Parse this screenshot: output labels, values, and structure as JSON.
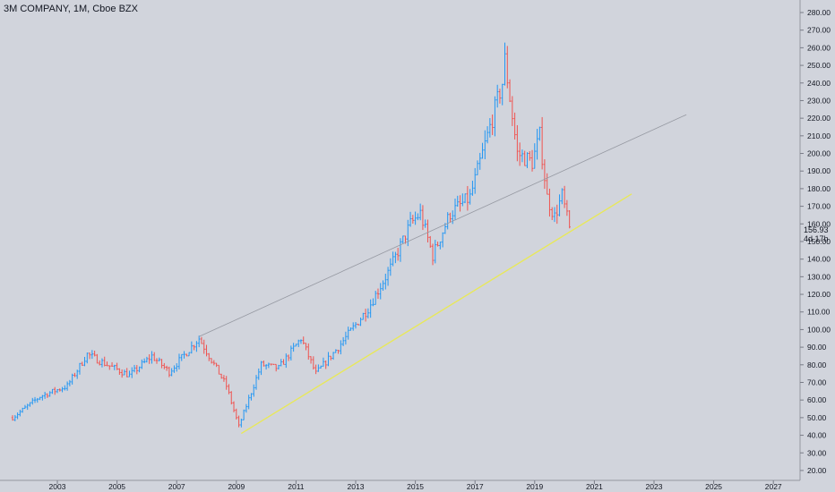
{
  "chart_data": {
    "type": "candlestick",
    "title": "3M COMPANY, 1M, Cboe BZX",
    "ylim": [
      20,
      280
    ],
    "y_ticks": [
      "280.00",
      "270.00",
      "260.00",
      "250.00",
      "240.00",
      "230.00",
      "220.00",
      "210.00",
      "200.00",
      "190.00",
      "180.00",
      "170.00",
      "160.00",
      "150.00",
      "140.00",
      "130.00",
      "120.00",
      "110.00",
      "100.00",
      "90.00",
      "80.00",
      "70.00",
      "60.00",
      "50.00",
      "40.00",
      "30.00",
      "20.00"
    ],
    "x_ticks": [
      "2003",
      "2005",
      "2007",
      "2009",
      "2011",
      "2013",
      "2015",
      "2017",
      "2019",
      "2021",
      "2023",
      "2025",
      "2027"
    ],
    "last_price": "156.93",
    "countdown": "4d 17h",
    "colors": {
      "up": "#2196f3",
      "down": "#ef5350",
      "support": "#e8e85a",
      "resistance": "#9598a1",
      "background": "#d1d4dc"
    },
    "anchors": [
      {
        "date": "2001-07",
        "value": 50
      },
      {
        "date": "2002-06",
        "value": 62
      },
      {
        "date": "2003-05",
        "value": 68
      },
      {
        "date": "2004-01",
        "value": 86
      },
      {
        "date": "2004-09",
        "value": 80
      },
      {
        "date": "2005-06",
        "value": 74
      },
      {
        "date": "2006-03",
        "value": 85
      },
      {
        "date": "2006-10",
        "value": 76
      },
      {
        "date": "2007-10",
        "value": 95
      },
      {
        "date": "2008-09",
        "value": 68
      },
      {
        "date": "2009-02",
        "value": 45
      },
      {
        "date": "2009-11",
        "value": 80
      },
      {
        "date": "2010-06",
        "value": 78
      },
      {
        "date": "2011-03",
        "value": 95
      },
      {
        "date": "2011-09",
        "value": 75
      },
      {
        "date": "2012-06",
        "value": 90
      },
      {
        "date": "2013-06",
        "value": 112
      },
      {
        "date": "2014-03",
        "value": 135
      },
      {
        "date": "2014-11",
        "value": 160
      },
      {
        "date": "2015-03",
        "value": 166
      },
      {
        "date": "2015-08",
        "value": 142
      },
      {
        "date": "2016-03",
        "value": 166
      },
      {
        "date": "2016-11",
        "value": 175
      },
      {
        "date": "2017-05",
        "value": 205
      },
      {
        "date": "2017-12",
        "value": 240
      },
      {
        "date": "2018-01",
        "value": 253
      },
      {
        "date": "2018-06",
        "value": 200
      },
      {
        "date": "2018-12",
        "value": 195
      },
      {
        "date": "2019-03",
        "value": 210
      },
      {
        "date": "2019-06",
        "value": 175
      },
      {
        "date": "2019-09",
        "value": 164
      },
      {
        "date": "2019-12",
        "value": 176
      },
      {
        "date": "2020-03",
        "value": 157
      }
    ],
    "support_line": [
      {
        "date": "2009-03",
        "value": 41
      },
      {
        "date": "2022-04",
        "value": 177
      }
    ],
    "resistance_line": [
      {
        "date": "2007-10",
        "value": 96
      },
      {
        "date": "2024-02",
        "value": 222
      }
    ],
    "grid": false
  }
}
